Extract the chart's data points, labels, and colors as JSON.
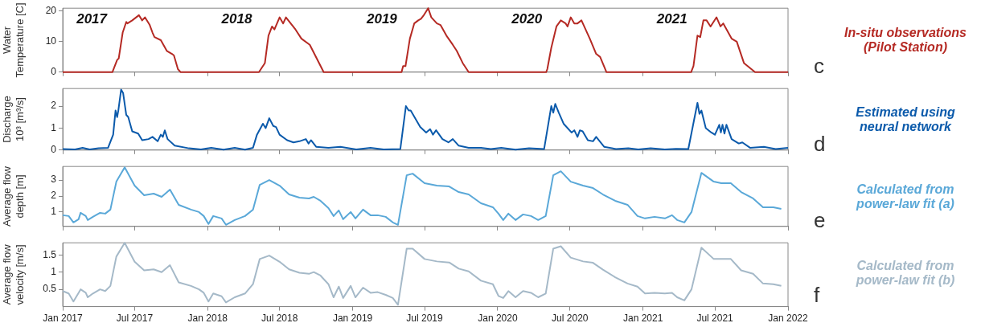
{
  "chart_data": [
    {
      "type": "line",
      "color": "#b52a24",
      "ylabel": "Water\nTemperature [C]",
      "ylim": [
        0,
        21
      ],
      "yticks": [
        0,
        10,
        20
      ],
      "xlim": [
        "2017-01-01",
        "2022-01-01"
      ],
      "xticks": [
        {
          "value": "2017-01",
          "label": null
        },
        {
          "value": "2017-07",
          "label": null
        },
        {
          "value": "2018-01",
          "label": null
        },
        {
          "value": "2018-07",
          "label": null
        },
        {
          "value": "2019-01",
          "label": null
        },
        {
          "value": "2019-07",
          "label": null
        },
        {
          "value": "2020-01",
          "label": null
        },
        {
          "value": "2020-07",
          "label": null
        },
        {
          "value": "2021-01",
          "label": null
        },
        {
          "value": "2021-07",
          "label": null
        },
        {
          "value": "2022-01",
          "label": null
        }
      ],
      "tick_labels": "y",
      "legend": false,
      "marker": "none",
      "annotations": [
        "In-situ observations (Pilot Station)",
        "c",
        "2017",
        "2018",
        "2019",
        "2020",
        "2021"
      ],
      "x": [
        "2017-01-01",
        "2017-05-06",
        "2017-05-18",
        "2017-05-22",
        "2017-06-01",
        "2017-06-10",
        "2017-06-13",
        "2017-06-25",
        "2017-07-12",
        "2017-07-20",
        "2017-07-27",
        "2017-08-08",
        "2017-08-15",
        "2017-08-20",
        "2017-09-05",
        "2017-09-20",
        "2017-10-03",
        "2017-10-08",
        "2017-10-18",
        "2017-10-25",
        "2018-05-10",
        "2018-05-25",
        "2018-06-03",
        "2018-06-12",
        "2018-06-18",
        "2018-07-01",
        "2018-07-10",
        "2018-07-17",
        "2018-08-10",
        "2018-08-25",
        "2018-09-15",
        "2018-10-20",
        "2019-05-04",
        "2019-05-08",
        "2019-05-14",
        "2019-05-25",
        "2019-06-05",
        "2019-06-15",
        "2019-06-22",
        "2019-06-28",
        "2019-07-10",
        "2019-07-18",
        "2019-08-01",
        "2019-08-10",
        "2019-08-25",
        "2019-09-10",
        "2019-09-20",
        "2019-10-05",
        "2019-10-20",
        "2020-05-02",
        "2020-05-05",
        "2020-05-15",
        "2020-05-28",
        "2020-06-08",
        "2020-06-20",
        "2020-06-25",
        "2020-07-03",
        "2020-07-12",
        "2020-07-20",
        "2020-07-30",
        "2020-08-20",
        "2020-09-05",
        "2020-09-15",
        "2020-10-01",
        "2021-05-02",
        "2021-05-08",
        "2021-05-18",
        "2021-05-25",
        "2021-06-02",
        "2021-06-10",
        "2021-06-20",
        "2021-07-05",
        "2021-07-15",
        "2021-07-22",
        "2021-08-12",
        "2021-08-25",
        "2021-09-12",
        "2021-10-10",
        "2022-01-01"
      ],
      "values": [
        0,
        0,
        4,
        4.5,
        13,
        16.5,
        16,
        17,
        18.7,
        17,
        18,
        15.5,
        13,
        11.5,
        10.5,
        7,
        6,
        5.5,
        1,
        0,
        0,
        3,
        12,
        15,
        14,
        18,
        16,
        18,
        14,
        11,
        9,
        0,
        0,
        2,
        2,
        11,
        16,
        17,
        17.5,
        18.5,
        21,
        18,
        16,
        15.5,
        12,
        9,
        7,
        3,
        0,
        0,
        1,
        8,
        15,
        17,
        16,
        15,
        18,
        16,
        16,
        17,
        11,
        6,
        5,
        0,
        0,
        2,
        12,
        11.5,
        17,
        17,
        15,
        18,
        15,
        16,
        11,
        10,
        3,
        0,
        0
      ]
    },
    {
      "type": "line",
      "color": "#0b5aab",
      "ylabel": "Discharge\n10³ [m³/s]",
      "ylim": [
        0,
        2.8
      ],
      "yticks": [
        0,
        1,
        2
      ],
      "xlim": [
        "2017-01-01",
        "2022-01-01"
      ],
      "xticks": [
        {
          "value": "2017-01",
          "label": null
        },
        {
          "value": "2017-07",
          "label": null
        },
        {
          "value": "2018-01",
          "label": null
        },
        {
          "value": "2018-07",
          "label": null
        },
        {
          "value": "2019-01",
          "label": null
        },
        {
          "value": "2019-07",
          "label": null
        },
        {
          "value": "2020-01",
          "label": null
        },
        {
          "value": "2020-07",
          "label": null
        },
        {
          "value": "2021-01",
          "label": null
        },
        {
          "value": "2021-07",
          "label": null
        },
        {
          "value": "2022-01",
          "label": null
        }
      ],
      "tick_labels": "y",
      "legend": false,
      "marker": "none",
      "annotations": [
        "Estimated using neural network",
        "d"
      ],
      "x": [
        "2017-01-01",
        "2017-02-01",
        "2017-02-20",
        "2017-03-10",
        "2017-04-01",
        "2017-04-25",
        "2017-05-08",
        "2017-05-14",
        "2017-05-18",
        "2017-05-21",
        "2017-05-28",
        "2017-06-02",
        "2017-06-10",
        "2017-06-15",
        "2017-06-25",
        "2017-07-10",
        "2017-07-20",
        "2017-08-05",
        "2017-08-15",
        "2017-08-28",
        "2017-09-05",
        "2017-09-10",
        "2017-09-15",
        "2017-09-22",
        "2017-10-10",
        "2017-11-15",
        "2017-12-15",
        "2018-01-10",
        "2018-02-10",
        "2018-03-10",
        "2018-04-05",
        "2018-04-25",
        "2018-05-05",
        "2018-05-20",
        "2018-05-27",
        "2018-06-05",
        "2018-06-15",
        "2018-06-22",
        "2018-07-01",
        "2018-07-20",
        "2018-08-05",
        "2018-08-20",
        "2018-09-05",
        "2018-09-12",
        "2018-09-18",
        "2018-10-01",
        "2018-11-01",
        "2018-12-01",
        "2019-01-10",
        "2019-02-15",
        "2019-03-20",
        "2019-05-01",
        "2019-05-15",
        "2019-05-22",
        "2019-05-27",
        "2019-06-20",
        "2019-07-05",
        "2019-07-15",
        "2019-07-22",
        "2019-07-30",
        "2019-08-15",
        "2019-08-30",
        "2019-09-10",
        "2019-09-25",
        "2019-10-20",
        "2019-11-20",
        "2019-12-15",
        "2020-01-10",
        "2020-02-15",
        "2020-03-20",
        "2020-04-27",
        "2020-05-15",
        "2020-05-20",
        "2020-05-25",
        "2020-06-03",
        "2020-06-15",
        "2020-07-05",
        "2020-07-12",
        "2020-07-20",
        "2020-07-26",
        "2020-08-02",
        "2020-08-15",
        "2020-08-28",
        "2020-09-05",
        "2020-09-25",
        "2020-10-25",
        "2020-11-25",
        "2020-12-20",
        "2021-01-20",
        "2021-02-25",
        "2021-03-25",
        "2021-04-25",
        "2021-05-18",
        "2021-05-23",
        "2021-05-28",
        "2021-06-08",
        "2021-06-22",
        "2021-07-01",
        "2021-07-12",
        "2021-07-16",
        "2021-07-20",
        "2021-07-25",
        "2021-07-30",
        "2021-08-12",
        "2021-08-30",
        "2021-09-08",
        "2021-09-28",
        "2021-11-01",
        "2021-12-01",
        "2022-01-01"
      ],
      "values": [
        0.05,
        0.03,
        0.1,
        0.03,
        0.08,
        0.1,
        0.7,
        1.8,
        1.5,
        1.8,
        2.75,
        2.6,
        1.6,
        1.5,
        0.85,
        0.75,
        0.45,
        0.5,
        0.6,
        0.4,
        0.7,
        0.6,
        0.9,
        0.5,
        0.2,
        0.08,
        0.03,
        0.1,
        0.02,
        0.1,
        0.02,
        0.1,
        0.7,
        1.2,
        1.0,
        1.45,
        1.1,
        1.05,
        0.7,
        0.45,
        0.35,
        0.4,
        0.5,
        0.3,
        0.45,
        0.15,
        0.1,
        0.15,
        0.03,
        0.1,
        0.03,
        0.05,
        2.0,
        1.8,
        1.8,
        1.05,
        0.8,
        0.95,
        0.7,
        0.9,
        0.5,
        0.35,
        0.5,
        0.2,
        0.1,
        0.1,
        0.05,
        0.1,
        0.02,
        0.08,
        0.05,
        2.0,
        1.7,
        2.1,
        1.7,
        1.2,
        0.8,
        0.9,
        0.6,
        0.9,
        0.85,
        0.45,
        0.4,
        0.6,
        0.15,
        0.05,
        0.08,
        0.03,
        0.08,
        0.03,
        0.06,
        0.05,
        2.15,
        1.65,
        1.8,
        1.0,
        0.8,
        0.7,
        1.15,
        0.8,
        1.15,
        0.75,
        1.15,
        0.5,
        0.3,
        0.35,
        0.1,
        0.15,
        0.05,
        0.1
      ]
    },
    {
      "type": "line",
      "color": "#5aa8d8",
      "ylabel": "Average flow\ndepth [m]",
      "ylim": [
        0.1,
        3.85
      ],
      "yticks": [
        1,
        2,
        3
      ],
      "xlim": [
        "2017-01-01",
        "2022-01-01"
      ],
      "xticks": [
        {
          "value": "2017-01",
          "label": null
        },
        {
          "value": "2017-07",
          "label": null
        },
        {
          "value": "2018-01",
          "label": null
        },
        {
          "value": "2018-07",
          "label": null
        },
        {
          "value": "2019-01",
          "label": null
        },
        {
          "value": "2019-07",
          "label": null
        },
        {
          "value": "2020-01",
          "label": null
        },
        {
          "value": "2020-07",
          "label": null
        },
        {
          "value": "2021-01",
          "label": null
        },
        {
          "value": "2021-07",
          "label": null
        },
        {
          "value": "2022-01",
          "label": null
        }
      ],
      "tick_labels": "y",
      "legend": false,
      "marker": "none",
      "annotations": [
        "Calculated from power-law fit (a)",
        "e"
      ],
      "x": [
        "2017-01-01",
        "2017-01-16",
        "2017-01-28",
        "2017-02-10",
        "2017-02-15",
        "2017-02-28",
        "2017-03-05",
        "2017-03-18",
        "2017-04-05",
        "2017-04-18",
        "2017-05-01",
        "2017-05-16",
        "2017-06-06",
        "2017-07-01",
        "2017-07-25",
        "2017-08-18",
        "2017-09-07",
        "2017-09-28",
        "2017-10-20",
        "2017-11-20",
        "2017-12-10",
        "2017-12-22",
        "2018-01-03",
        "2018-01-15",
        "2018-02-05",
        "2018-02-16",
        "2018-03-10",
        "2018-04-05",
        "2018-04-25",
        "2018-05-12",
        "2018-06-05",
        "2018-07-01",
        "2018-07-25",
        "2018-08-20",
        "2018-09-13",
        "2018-09-25",
        "2018-10-12",
        "2018-11-01",
        "2018-11-14",
        "2018-11-27",
        "2018-12-08",
        "2018-12-27",
        "2019-01-08",
        "2019-01-27",
        "2019-02-15",
        "2019-03-05",
        "2019-03-25",
        "2019-04-12",
        "2019-04-25",
        "2019-05-17",
        "2019-06-01",
        "2019-07-01",
        "2019-08-01",
        "2019-09-01",
        "2019-09-25",
        "2019-10-20",
        "2019-11-20",
        "2019-12-20",
        "2020-01-03",
        "2020-01-15",
        "2020-01-28",
        "2020-02-15",
        "2020-03-05",
        "2020-03-25",
        "2020-04-12",
        "2020-05-01",
        "2020-05-20",
        "2020-06-08",
        "2020-07-03",
        "2020-08-03",
        "2020-08-28",
        "2020-09-22",
        "2020-10-23",
        "2020-11-23",
        "2020-12-18",
        "2021-01-06",
        "2021-01-30",
        "2021-02-25",
        "2021-03-15",
        "2021-03-28",
        "2021-04-15",
        "2021-05-03",
        "2021-05-28",
        "2021-06-28",
        "2021-07-17",
        "2021-08-10",
        "2021-09-05",
        "2021-10-05",
        "2021-10-30",
        "2021-11-25",
        "2021-12-15"
      ],
      "values": [
        0.8,
        0.75,
        0.35,
        0.55,
        0.95,
        0.75,
        0.5,
        0.7,
        0.95,
        0.9,
        1.15,
        2.9,
        3.8,
        2.65,
        2.05,
        2.15,
        1.95,
        2.4,
        1.45,
        1.15,
        1.0,
        0.75,
        0.25,
        0.75,
        0.6,
        0.2,
        0.5,
        0.75,
        1.15,
        2.7,
        3.0,
        2.65,
        2.1,
        1.9,
        1.85,
        1.95,
        1.7,
        1.25,
        0.75,
        1.1,
        0.55,
        1.0,
        0.6,
        1.15,
        0.8,
        0.8,
        0.7,
        0.35,
        0.2,
        3.3,
        3.4,
        2.8,
        2.65,
        2.6,
        2.25,
        2.1,
        1.55,
        1.3,
        0.9,
        0.5,
        0.9,
        0.5,
        0.85,
        0.75,
        0.5,
        0.75,
        3.3,
        3.55,
        2.9,
        2.65,
        2.5,
        2.1,
        1.7,
        1.45,
        0.75,
        0.6,
        0.7,
        0.6,
        0.8,
        0.5,
        0.35,
        1.0,
        3.45,
        2.9,
        2.8,
        2.8,
        2.25,
        1.85,
        1.3,
        1.3,
        1.2
      ]
    },
    {
      "type": "line",
      "color": "#a5b9c8",
      "ylabel": "Average flow\nvelocity [m/s]",
      "ylim": [
        0,
        1.85
      ],
      "yticks": [
        0.5,
        1,
        1.5
      ],
      "xlim": [
        "2017-01-01",
        "2022-01-01"
      ],
      "xticks": [
        {
          "value": "2017-01",
          "label": "Jan 2017"
        },
        {
          "value": "2017-07",
          "label": "Jul 2017"
        },
        {
          "value": "2018-01",
          "label": "Jan 2018"
        },
        {
          "value": "2018-07",
          "label": "Jul 2018"
        },
        {
          "value": "2019-01",
          "label": "Jan 2019"
        },
        {
          "value": "2019-07",
          "label": "Jul 2019"
        },
        {
          "value": "2020-01",
          "label": "Jan 2020"
        },
        {
          "value": "2020-07",
          "label": "Jul 2020"
        },
        {
          "value": "2021-01",
          "label": "Jan 2021"
        },
        {
          "value": "2021-07",
          "label": "Jul 2021"
        },
        {
          "value": "2022-01",
          "label": "Jan 2022"
        }
      ],
      "legend": false,
      "marker": "none",
      "annotations": [
        "Calculated from power-law fit (b)",
        "f"
      ],
      "x": [
        "2017-01-01",
        "2017-01-16",
        "2017-01-28",
        "2017-02-10",
        "2017-02-15",
        "2017-02-28",
        "2017-03-05",
        "2017-03-18",
        "2017-04-05",
        "2017-04-18",
        "2017-05-01",
        "2017-05-16",
        "2017-06-06",
        "2017-07-01",
        "2017-07-25",
        "2017-08-18",
        "2017-09-07",
        "2017-09-28",
        "2017-10-20",
        "2017-11-20",
        "2017-12-10",
        "2017-12-22",
        "2018-01-03",
        "2018-01-15",
        "2018-02-05",
        "2018-02-16",
        "2018-03-10",
        "2018-04-05",
        "2018-04-25",
        "2018-05-12",
        "2018-06-05",
        "2018-07-01",
        "2018-07-25",
        "2018-08-20",
        "2018-09-13",
        "2018-09-25",
        "2018-10-12",
        "2018-11-01",
        "2018-11-14",
        "2018-11-27",
        "2018-12-08",
        "2018-12-27",
        "2019-01-08",
        "2019-01-27",
        "2019-02-15",
        "2019-03-05",
        "2019-03-25",
        "2019-04-12",
        "2019-04-25",
        "2019-05-17",
        "2019-06-01",
        "2019-07-01",
        "2019-08-01",
        "2019-09-01",
        "2019-09-25",
        "2019-10-20",
        "2019-11-20",
        "2019-12-20",
        "2020-01-03",
        "2020-01-15",
        "2020-01-28",
        "2020-02-15",
        "2020-03-05",
        "2020-03-25",
        "2020-04-12",
        "2020-05-01",
        "2020-05-20",
        "2020-06-08",
        "2020-07-03",
        "2020-08-03",
        "2020-08-28",
        "2020-09-22",
        "2020-10-23",
        "2020-11-23",
        "2020-12-18",
        "2021-01-06",
        "2021-01-30",
        "2021-02-25",
        "2021-03-15",
        "2021-03-28",
        "2021-04-15",
        "2021-05-03",
        "2021-05-28",
        "2021-06-28",
        "2021-07-17",
        "2021-08-10",
        "2021-09-05",
        "2021-10-05",
        "2021-10-30",
        "2021-11-25",
        "2021-12-15"
      ],
      "values": [
        0.45,
        0.38,
        0.15,
        0.4,
        0.5,
        0.4,
        0.27,
        0.38,
        0.5,
        0.45,
        0.6,
        1.45,
        1.85,
        1.3,
        1.05,
        1.08,
        1.0,
        1.2,
        0.7,
        0.6,
        0.5,
        0.4,
        0.15,
        0.38,
        0.3,
        0.12,
        0.27,
        0.38,
        0.65,
        1.38,
        1.48,
        1.3,
        1.08,
        0.98,
        0.95,
        1.0,
        0.9,
        0.65,
        0.27,
        0.58,
        0.25,
        0.6,
        0.27,
        0.55,
        0.4,
        0.42,
        0.34,
        0.25,
        0.05,
        1.68,
        1.68,
        1.38,
        1.31,
        1.28,
        1.1,
        1.02,
        0.75,
        0.65,
        0.31,
        0.25,
        0.45,
        0.27,
        0.45,
        0.4,
        0.27,
        0.38,
        1.68,
        1.75,
        1.42,
        1.31,
        1.27,
        1.07,
        0.85,
        0.67,
        0.58,
        0.38,
        0.4,
        0.38,
        0.4,
        0.27,
        0.18,
        0.5,
        1.71,
        1.38,
        1.38,
        1.38,
        1.05,
        0.95,
        0.67,
        0.65,
        0.6
      ]
    }
  ]
}
